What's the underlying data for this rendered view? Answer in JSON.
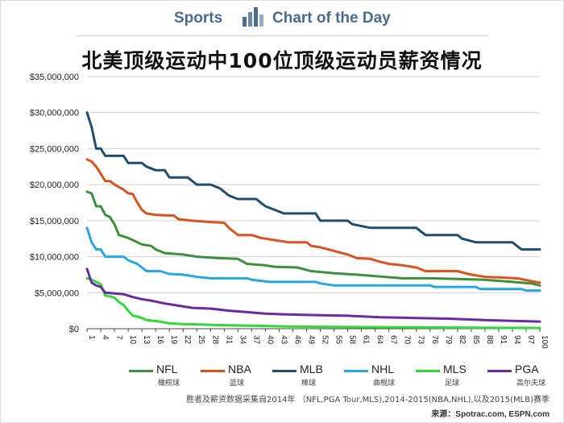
{
  "header": {
    "sports": "Sports",
    "chart_of_the_day": "Chart of the Day",
    "logo_icon": "bar-chart-logo-icon"
  },
  "footnote": "胜者及薪资数据采集自2014年 （NFL,PGA Tour,MLS),2014-2015(NBA,NHL),以及2015(MLB)赛季",
  "source": "来源：Spotrac.com, ESPN.com",
  "chart_data": {
    "type": "line",
    "title": "北美顶级运动中100位顶级运动员薪资情况",
    "xlabel": "",
    "ylabel": "",
    "xlim": [
      1,
      100
    ],
    "ylim": [
      0,
      35000000
    ],
    "yticks": [
      "$0",
      "$5,000,000",
      "$10,000,000",
      "$15,000,000",
      "$20,000,000",
      "$25,000,000",
      "$30,000,000",
      "$35,000,000"
    ],
    "ytick_values": [
      0,
      5000000,
      10000000,
      15000000,
      20000000,
      25000000,
      30000000,
      35000000
    ],
    "xticks": [
      "1",
      "4",
      "7",
      "10",
      "13",
      "16",
      "19",
      "22",
      "25",
      "28",
      "31",
      "34",
      "37",
      "40",
      "43",
      "46",
      "49",
      "52",
      "55",
      "58",
      "61",
      "64",
      "67",
      "70",
      "73",
      "76",
      "79",
      "82",
      "85",
      "88",
      "91",
      "94",
      "97",
      "100"
    ],
    "grid": true,
    "legend_position": "bottom",
    "series": [
      {
        "name": "NFL",
        "name_zh": "橄榄球",
        "color": "#3d8f3d",
        "points": [
          [
            1,
            19000000
          ],
          [
            2,
            18800000
          ],
          [
            3,
            17000000
          ],
          [
            4,
            17000000
          ],
          [
            5,
            15800000
          ],
          [
            6,
            15500000
          ],
          [
            7,
            14500000
          ],
          [
            8,
            13000000
          ],
          [
            10,
            12600000
          ],
          [
            13,
            11700000
          ],
          [
            15,
            11500000
          ],
          [
            16,
            11000000
          ],
          [
            18,
            10500000
          ],
          [
            22,
            10300000
          ],
          [
            25,
            10000000
          ],
          [
            30,
            9800000
          ],
          [
            34,
            9700000
          ],
          [
            36,
            9000000
          ],
          [
            40,
            8800000
          ],
          [
            42,
            8600000
          ],
          [
            47,
            8500000
          ],
          [
            50,
            8000000
          ],
          [
            55,
            7700000
          ],
          [
            60,
            7500000
          ],
          [
            66,
            7200000
          ],
          [
            70,
            7000000
          ],
          [
            76,
            7000000
          ],
          [
            82,
            6900000
          ],
          [
            88,
            6800000
          ],
          [
            94,
            6500000
          ],
          [
            98,
            6300000
          ],
          [
            100,
            6000000
          ]
        ]
      },
      {
        "name": "NBA",
        "name_zh": "篮球",
        "color": "#d9531e",
        "points": [
          [
            1,
            23500000
          ],
          [
            2,
            23200000
          ],
          [
            3,
            22500000
          ],
          [
            4,
            21500000
          ],
          [
            5,
            20500000
          ],
          [
            6,
            20500000
          ],
          [
            7,
            20000000
          ],
          [
            9,
            19300000
          ],
          [
            10,
            18800000
          ],
          [
            11,
            18700000
          ],
          [
            12,
            17500000
          ],
          [
            13,
            16500000
          ],
          [
            14,
            16000000
          ],
          [
            16,
            15800000
          ],
          [
            20,
            15700000
          ],
          [
            21,
            15200000
          ],
          [
            24,
            15000000
          ],
          [
            28,
            14800000
          ],
          [
            31,
            14700000
          ],
          [
            32,
            14000000
          ],
          [
            33,
            13500000
          ],
          [
            34,
            13000000
          ],
          [
            37,
            13000000
          ],
          [
            39,
            12600000
          ],
          [
            42,
            12300000
          ],
          [
            45,
            12000000
          ],
          [
            49,
            12000000
          ],
          [
            50,
            11500000
          ],
          [
            52,
            11300000
          ],
          [
            55,
            10800000
          ],
          [
            58,
            10300000
          ],
          [
            60,
            9800000
          ],
          [
            63,
            9700000
          ],
          [
            65,
            9300000
          ],
          [
            67,
            9000000
          ],
          [
            70,
            8800000
          ],
          [
            73,
            8500000
          ],
          [
            75,
            8000000
          ],
          [
            82,
            8000000
          ],
          [
            85,
            7500000
          ],
          [
            88,
            7200000
          ],
          [
            95,
            7000000
          ],
          [
            99,
            6500000
          ],
          [
            100,
            6400000
          ]
        ]
      },
      {
        "name": "MLB",
        "name_zh": "棒球",
        "color": "#1f4e6b",
        "points": [
          [
            1,
            30000000
          ],
          [
            2,
            28000000
          ],
          [
            3,
            25000000
          ],
          [
            4,
            25000000
          ],
          [
            5,
            24000000
          ],
          [
            9,
            24000000
          ],
          [
            10,
            23000000
          ],
          [
            13,
            23000000
          ],
          [
            14,
            22500000
          ],
          [
            16,
            22000000
          ],
          [
            18,
            22000000
          ],
          [
            19,
            21000000
          ],
          [
            23,
            21000000
          ],
          [
            25,
            20000000
          ],
          [
            28,
            20000000
          ],
          [
            30,
            19500000
          ],
          [
            31,
            19000000
          ],
          [
            32,
            18500000
          ],
          [
            34,
            18000000
          ],
          [
            38,
            18000000
          ],
          [
            39,
            17500000
          ],
          [
            40,
            17000000
          ],
          [
            42,
            16500000
          ],
          [
            44,
            16000000
          ],
          [
            51,
            16000000
          ],
          [
            52,
            15000000
          ],
          [
            58,
            15000000
          ],
          [
            59,
            14500000
          ],
          [
            63,
            14000000
          ],
          [
            73,
            14000000
          ],
          [
            74,
            13500000
          ],
          [
            75,
            13000000
          ],
          [
            82,
            13000000
          ],
          [
            83,
            12500000
          ],
          [
            86,
            12000000
          ],
          [
            94,
            12000000
          ],
          [
            95,
            11500000
          ],
          [
            96,
            11000000
          ],
          [
            100,
            11000000
          ]
        ]
      },
      {
        "name": "NHL",
        "name_zh": "曲棍球",
        "color": "#29a6e0",
        "points": [
          [
            1,
            14000000
          ],
          [
            2,
            12000000
          ],
          [
            3,
            11000000
          ],
          [
            4,
            11000000
          ],
          [
            5,
            10000000
          ],
          [
            9,
            10000000
          ],
          [
            10,
            9500000
          ],
          [
            12,
            9000000
          ],
          [
            13,
            8500000
          ],
          [
            14,
            8000000
          ],
          [
            17,
            8000000
          ],
          [
            19,
            7600000
          ],
          [
            22,
            7500000
          ],
          [
            25,
            7200000
          ],
          [
            28,
            7000000
          ],
          [
            36,
            7000000
          ],
          [
            37,
            6800000
          ],
          [
            41,
            6500000
          ],
          [
            51,
            6500000
          ],
          [
            52,
            6300000
          ],
          [
            55,
            6000000
          ],
          [
            76,
            6000000
          ],
          [
            77,
            5800000
          ],
          [
            86,
            5800000
          ],
          [
            87,
            5500000
          ],
          [
            96,
            5500000
          ],
          [
            97,
            5300000
          ],
          [
            100,
            5300000
          ]
        ]
      },
      {
        "name": "MLS",
        "name_zh": "足球",
        "color": "#35d63a",
        "points": [
          [
            1,
            7000000
          ],
          [
            2,
            6800000
          ],
          [
            3,
            6500000
          ],
          [
            4,
            6200000
          ],
          [
            5,
            4600000
          ],
          [
            6,
            4500000
          ],
          [
            7,
            4300000
          ],
          [
            8,
            3700000
          ],
          [
            9,
            3300000
          ],
          [
            10,
            2500000
          ],
          [
            11,
            1800000
          ],
          [
            12,
            1700000
          ],
          [
            13,
            1500000
          ],
          [
            14,
            1200000
          ],
          [
            17,
            1000000
          ],
          [
            19,
            750000
          ],
          [
            22,
            650000
          ],
          [
            25,
            600000
          ],
          [
            30,
            500000
          ],
          [
            38,
            400000
          ],
          [
            45,
            300000
          ],
          [
            55,
            250000
          ],
          [
            70,
            200000
          ],
          [
            85,
            150000
          ],
          [
            100,
            100000
          ]
        ]
      },
      {
        "name": "PGA",
        "name_zh": "高尔夫球",
        "color": "#6a2aa3",
        "points": [
          [
            1,
            8300000
          ],
          [
            2,
            6400000
          ],
          [
            3,
            6000000
          ],
          [
            4,
            5800000
          ],
          [
            5,
            5000000
          ],
          [
            9,
            4800000
          ],
          [
            11,
            4400000
          ],
          [
            13,
            4100000
          ],
          [
            15,
            3900000
          ],
          [
            18,
            3500000
          ],
          [
            21,
            3200000
          ],
          [
            24,
            2900000
          ],
          [
            28,
            2800000
          ],
          [
            32,
            2500000
          ],
          [
            36,
            2300000
          ],
          [
            40,
            2100000
          ],
          [
            44,
            2000000
          ],
          [
            50,
            1900000
          ],
          [
            58,
            1800000
          ],
          [
            65,
            1600000
          ],
          [
            72,
            1500000
          ],
          [
            80,
            1400000
          ],
          [
            88,
            1200000
          ],
          [
            94,
            1100000
          ],
          [
            100,
            1000000
          ]
        ]
      }
    ]
  }
}
